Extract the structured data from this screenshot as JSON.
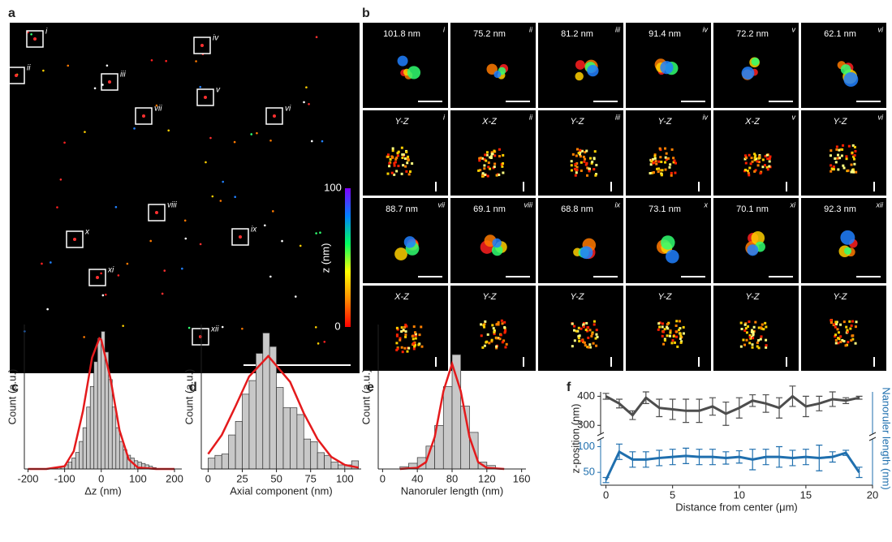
{
  "panel_a": {
    "label": "a",
    "boxes": [
      "i",
      "ii",
      "iii",
      "iv",
      "v",
      "vi",
      "vii",
      "viii",
      "ix",
      "x",
      "xi",
      "xii"
    ],
    "colorbar": {
      "max": 100,
      "min": 0,
      "label": "z (nm)"
    }
  },
  "panel_b": {
    "label": "b",
    "rows": [
      [
        {
          "text": "101.8 nm",
          "id": "i"
        },
        {
          "text": "75.2 nm",
          "id": "ii"
        },
        {
          "text": "81.2 nm",
          "id": "iii"
        },
        {
          "text": "91.4 nm",
          "id": "iv"
        },
        {
          "text": "72.2 nm",
          "id": "v"
        },
        {
          "text": "62.1 nm",
          "id": "vi"
        }
      ],
      [
        {
          "text": "Y-Z",
          "id": "i"
        },
        {
          "text": "X-Z",
          "id": "ii"
        },
        {
          "text": "Y-Z",
          "id": "iii"
        },
        {
          "text": "Y-Z",
          "id": "iv"
        },
        {
          "text": "X-Z",
          "id": "v"
        },
        {
          "text": "Y-Z",
          "id": "vi"
        }
      ],
      [
        {
          "text": "88.7 nm",
          "id": "vii"
        },
        {
          "text": "69.1 nm",
          "id": "viii"
        },
        {
          "text": "68.8 nm",
          "id": "ix"
        },
        {
          "text": "73.1 nm",
          "id": "x"
        },
        {
          "text": "70.1 nm",
          "id": "xi"
        },
        {
          "text": "92.3 nm",
          "id": "xii"
        }
      ],
      [
        {
          "text": "X-Z"
        },
        {
          "text": "Y-Z"
        },
        {
          "text": "Y-Z"
        },
        {
          "text": "Y-Z"
        },
        {
          "text": "Y-Z"
        },
        {
          "text": "Y-Z"
        }
      ]
    ]
  },
  "chart_data": [
    {
      "type": "histogram",
      "panel_label": "c",
      "x_label": "Δz (nm)",
      "y_label": "Count (a.u.)",
      "color": "#c8c8c8",
      "bins": [
        -130,
        -120,
        -110,
        -100,
        -90,
        -80,
        -70,
        -60,
        -50,
        -40,
        -30,
        -20,
        -10,
        0,
        10,
        20,
        30,
        40,
        50,
        60,
        70,
        80,
        90,
        100,
        110,
        120,
        130,
        140,
        150
      ],
      "values": [
        0.01,
        0.01,
        0.02,
        0.03,
        0.05,
        0.08,
        0.12,
        0.2,
        0.3,
        0.45,
        0.6,
        0.78,
        0.95,
        1.0,
        0.85,
        0.65,
        0.45,
        0.3,
        0.2,
        0.14,
        0.1,
        0.08,
        0.06,
        0.05,
        0.04,
        0.03,
        0.02,
        0.01
      ],
      "fit": {
        "color": "#e41a1c",
        "x": [
          -200,
          -150,
          -100,
          -75,
          -50,
          -25,
          -5,
          0,
          25,
          50,
          75,
          100,
          150,
          200
        ],
        "values": [
          0,
          0,
          0.02,
          0.13,
          0.42,
          0.81,
          0.95,
          0.94,
          0.66,
          0.28,
          0.07,
          0.01,
          0,
          0
        ]
      },
      "xlim": [
        -210,
        220
      ],
      "ylim": [
        0,
        1.05
      ],
      "xticks": [
        -200,
        -100,
        0,
        100,
        200
      ]
    },
    {
      "type": "histogram",
      "panel_label": "d",
      "x_label": "Axial component (nm)",
      "y_label": "Count (a.u.)",
      "color": "#c8c8c8",
      "bins": [
        0,
        5,
        10,
        15,
        20,
        25,
        30,
        35,
        40,
        45,
        50,
        55,
        60,
        65,
        70,
        75,
        80,
        85,
        90,
        95,
        100,
        105,
        110
      ],
      "values": [
        0.08,
        0.1,
        0.11,
        0.25,
        0.35,
        0.55,
        0.65,
        0.85,
        1.0,
        0.9,
        0.6,
        0.45,
        0.45,
        0.4,
        0.22,
        0.2,
        0.12,
        0.1,
        0.05,
        0.03,
        0.03,
        0.06
      ],
      "fit": {
        "color": "#e41a1c",
        "x": [
          0,
          10,
          20,
          30,
          44,
          60,
          70,
          80,
          90,
          100,
          110
        ],
        "values": [
          0.11,
          0.25,
          0.46,
          0.68,
          0.83,
          0.64,
          0.41,
          0.22,
          0.09,
          0.03,
          0.01
        ]
      },
      "xlim": [
        -5,
        112
      ],
      "ylim": [
        0,
        1.05
      ],
      "xticks": [
        0,
        25,
        50,
        75,
        100
      ]
    },
    {
      "type": "histogram",
      "panel_label": "e",
      "x_label": "Nanoruler length (nm)",
      "y_label": "Count (a.u.)",
      "color": "#c8c8c8",
      "bins": [
        20,
        30,
        40,
        50,
        60,
        70,
        80,
        90,
        100,
        110,
        120,
        130
      ],
      "values": [
        0.02,
        0.05,
        0.1,
        0.2,
        0.38,
        0.72,
        1.0,
        0.55,
        0.32,
        0.06,
        0.03
      ],
      "fit": {
        "color": "#e41a1c",
        "x": [
          20,
          40,
          50,
          60,
          70,
          80,
          90,
          100,
          110,
          120,
          140
        ],
        "values": [
          0,
          0.01,
          0.06,
          0.28,
          0.68,
          0.92,
          0.68,
          0.28,
          0.06,
          0.01,
          0
        ]
      },
      "xlim": [
        -5,
        165
      ],
      "ylim": [
        0,
        1.05
      ],
      "xticks": [
        0,
        40,
        80,
        120,
        160
      ]
    },
    {
      "type": "line",
      "panel_label": "f",
      "x_label": "Distance from center (μm)",
      "y_label": "z-position (nm)",
      "y2_label": "Nanoruler length (nm)",
      "x": [
        0,
        1,
        2,
        3,
        4,
        5,
        6,
        7,
        8,
        9,
        10,
        11,
        12,
        13,
        14,
        15,
        16,
        17,
        18,
        19
      ],
      "series": [
        {
          "color": "#4d4d4d",
          "values": [
            400,
            375,
            335,
            395,
            360,
            355,
            350,
            350,
            365,
            340,
            360,
            385,
            375,
            360,
            400,
            365,
            375,
            390,
            385,
            395
          ],
          "errors": [
            10,
            15,
            15,
            20,
            30,
            35,
            40,
            40,
            30,
            40,
            35,
            20,
            30,
            35,
            35,
            35,
            25,
            25,
            10,
            5
          ]
        },
        {
          "color": "#1f6fae",
          "axis": "y2",
          "values": [
            35,
            90,
            75,
            75,
            78,
            80,
            82,
            80,
            80,
            78,
            80,
            75,
            80,
            80,
            78,
            80,
            78,
            80,
            88,
            50
          ],
          "errors": [
            5,
            15,
            15,
            15,
            15,
            15,
            15,
            15,
            15,
            12,
            12,
            20,
            15,
            20,
            15,
            15,
            25,
            10,
            5,
            10
          ]
        }
      ],
      "xlim": [
        -0.4,
        20
      ],
      "ylim": [
        270,
        415
      ],
      "yticks": [
        300,
        400
      ],
      "y2lim": [
        25,
        115
      ],
      "y2ticks": [
        50,
        100
      ],
      "xticks": [
        0,
        5,
        10,
        15,
        20
      ]
    }
  ]
}
